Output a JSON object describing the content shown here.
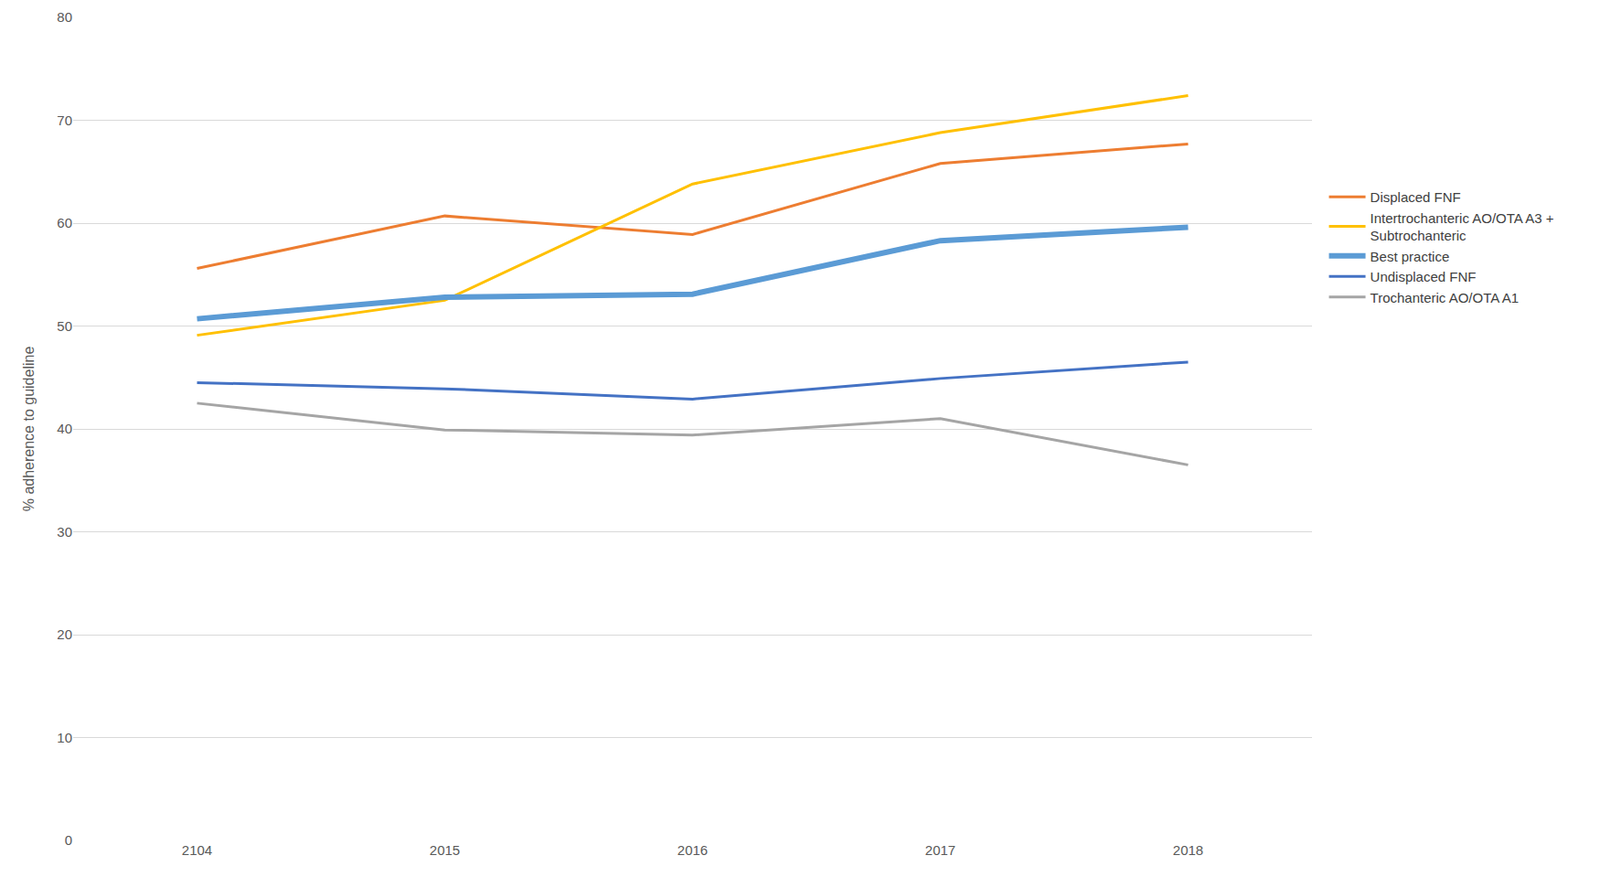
{
  "chart_data": {
    "type": "line",
    "y_label": "% adherence to guideline",
    "categories": [
      "2104",
      "2015",
      "2016",
      "2017",
      "2018"
    ],
    "series": [
      {
        "name": "Displaced FNF",
        "color": "#ed7d31",
        "values": [
          55.6,
          60.7,
          58.9,
          65.8,
          67.7
        ]
      },
      {
        "name": "Intertrochanteric AO/OTA A3 +\nSubtrochanteric",
        "color": "#ffc000",
        "values": [
          49.1,
          52.5,
          63.8,
          68.8,
          72.4
        ]
      },
      {
        "name": "Best practice",
        "color": "#5b9bd5",
        "line_style": "thick",
        "values": [
          50.7,
          52.8,
          53.1,
          58.3,
          59.6
        ]
      },
      {
        "name": "Undisplaced FNF",
        "color": "#4472c4",
        "values": [
          44.5,
          43.9,
          42.9,
          44.9,
          46.5
        ]
      },
      {
        "name": "Trochanteric AO/OTA A1",
        "color": "#a5a5a5",
        "values": [
          42.5,
          39.9,
          39.4,
          41.0,
          36.5
        ]
      }
    ],
    "ylim": [
      0,
      80
    ],
    "yticks": [
      0,
      10,
      20,
      30,
      40,
      50,
      60,
      70,
      80
    ],
    "grid": true,
    "legend": "right"
  }
}
